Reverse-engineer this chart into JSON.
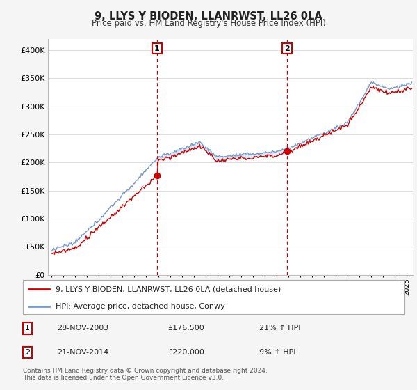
{
  "title": "9, LLYS Y BIODEN, LLANRWST, LL26 0LA",
  "subtitle": "Price paid vs. HM Land Registry's House Price Index (HPI)",
  "ylim": [
    0,
    420000
  ],
  "xlim": [
    1994.7,
    2025.5
  ],
  "yticks": [
    0,
    50000,
    100000,
    150000,
    200000,
    250000,
    300000,
    350000,
    400000
  ],
  "ytick_labels": [
    "£0",
    "£50K",
    "£100K",
    "£150K",
    "£200K",
    "£250K",
    "£300K",
    "£350K",
    "£400K"
  ],
  "sale1_date": 2003.91,
  "sale1_price": 176500,
  "sale1_label": "28-NOV-2003",
  "sale1_amount": "£176,500",
  "sale1_pct": "21% ↑ HPI",
  "sale2_date": 2014.89,
  "sale2_price": 220000,
  "sale2_label": "21-NOV-2014",
  "sale2_amount": "£220,000",
  "sale2_pct": "9% ↑ HPI",
  "legend_property": "9, LLYS Y BIODEN, LLANRWST, LL26 0LA (detached house)",
  "legend_hpi": "HPI: Average price, detached house, Conwy",
  "footer": "Contains HM Land Registry data © Crown copyright and database right 2024.\nThis data is licensed under the Open Government Licence v3.0.",
  "background_color": "#f5f5f5",
  "plot_bg_color": "#ffffff",
  "red_line_color": "#cc0000",
  "blue_line_color": "#7799cc",
  "fill_color": "#cce0f0",
  "grid_color": "#dddddd",
  "vline_color": "#cc0000"
}
